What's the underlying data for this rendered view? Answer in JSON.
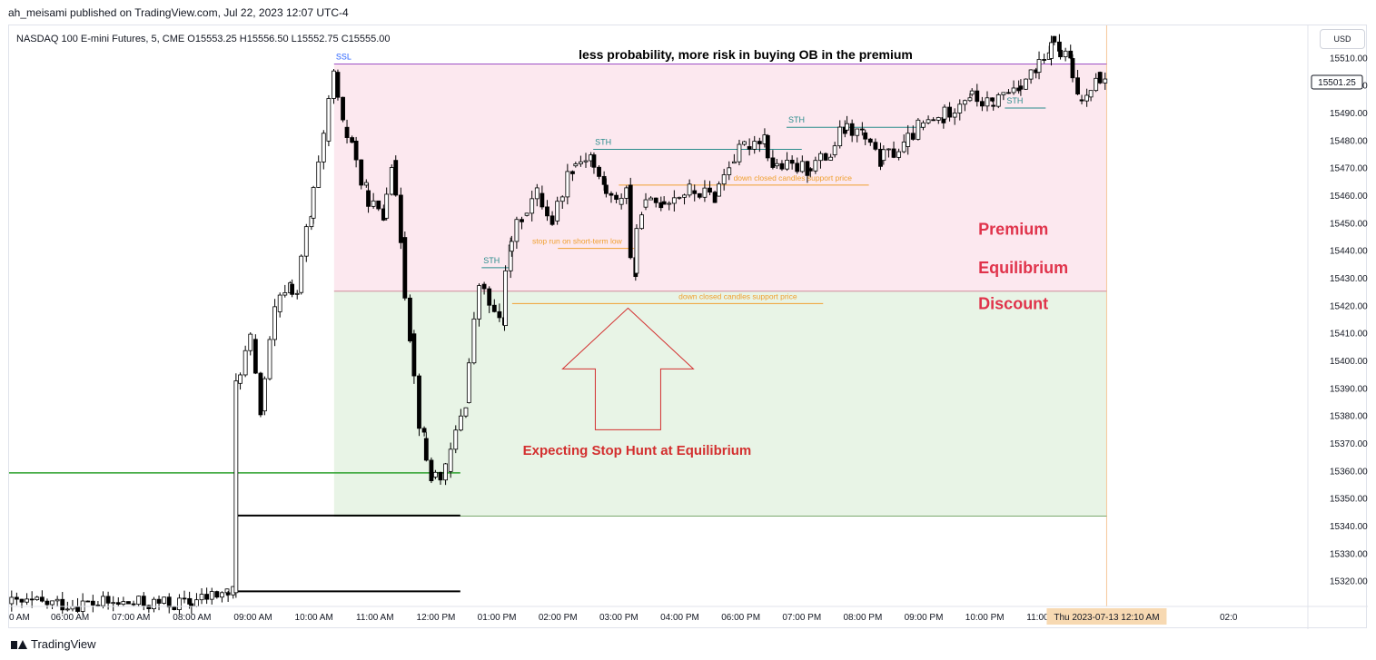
{
  "publisher_line": "ah_meisami published on TradingView.com, Jul 22, 2023 12:07 UTC-4",
  "footer_brand": "TradingView",
  "currency_button": "USD",
  "chart_data": {
    "type": "candlestick",
    "symbol_line": "NASDAQ 100 E-mini Futures, 5, CME  O15553.25  H15556.50  L15552.75  C15555.00",
    "title": "less probability, more risk in buying OB in the premium",
    "ylim": [
      15311,
      15522
    ],
    "y_ticks": [
      15320,
      15330,
      15340,
      15350,
      15360,
      15370,
      15380,
      15390,
      15400,
      15410,
      15420,
      15430,
      15440,
      15450,
      15460,
      15470,
      15480,
      15490,
      15500,
      15510
    ],
    "x_range_hours": [
      5.0,
      26.3
    ],
    "x_ticks": [
      {
        "h": 5,
        "label": "0 AM"
      },
      {
        "h": 6,
        "label": "06:00 AM"
      },
      {
        "h": 7,
        "label": "07:00 AM"
      },
      {
        "h": 8,
        "label": "08:00 AM"
      },
      {
        "h": 9,
        "label": "09:00 AM"
      },
      {
        "h": 10,
        "label": "10:00 AM"
      },
      {
        "h": 11,
        "label": "11:00 AM"
      },
      {
        "h": 12,
        "label": "12:00 PM"
      },
      {
        "h": 13,
        "label": "01:00 PM"
      },
      {
        "h": 14,
        "label": "02:00 PM"
      },
      {
        "h": 15,
        "label": "03:00 PM"
      },
      {
        "h": 16,
        "label": "04:00 PM"
      },
      {
        "h": 17,
        "label": "06:00 PM"
      },
      {
        "h": 18,
        "label": "07:00 PM"
      },
      {
        "h": 19,
        "label": "08:00 PM"
      },
      {
        "h": 20,
        "label": "09:00 PM"
      },
      {
        "h": 21,
        "label": "10:00 PM"
      },
      {
        "h": 22,
        "label": "11:00 PM"
      },
      {
        "h": 25,
        "label": "02:0"
      }
    ],
    "crosshair_time_label": "Thu 2023-07-13   12:10 AM",
    "crosshair_h": 23.0,
    "last_price_label": "15501.25",
    "last_price": 15501.25,
    "zones": [
      {
        "name": "premium-zone",
        "x0": 10.33,
        "x1": 23.0,
        "y0": 15425.5,
        "y1": 15508,
        "color": "#fce8ef"
      },
      {
        "name": "discount-zone",
        "x0": 10.33,
        "x1": 23.0,
        "y0": 15343.8,
        "y1": 15425.5,
        "color": "#e8f4e6"
      }
    ],
    "levels": [
      {
        "name": "ssl-line",
        "x0": 10.33,
        "x1": 23.0,
        "y": 15508,
        "color": "#9c4fc4",
        "width": 1,
        "label": "SSL",
        "label_color": "#2962ff",
        "label_x": 10.33
      },
      {
        "name": "equilibrium-line",
        "x0": 10.33,
        "x1": 23.0,
        "y": 15425.5,
        "color": "#d08a9c",
        "width": 1,
        "label": "",
        "label_color": "",
        "label_x": 0
      },
      {
        "name": "discount-bottom-line",
        "x0": 10.33,
        "x1": 23.0,
        "y": 15343.8,
        "color": "#7aa86e",
        "width": 1,
        "label": "",
        "label_color": "",
        "label_x": 0
      },
      {
        "name": "green-line",
        "x0": 5.0,
        "x1": 12.4,
        "y": 15359.5,
        "color": "#2ca02c",
        "width": 1.5,
        "label": "",
        "label_color": "",
        "label_x": 0
      },
      {
        "name": "black-line-upper",
        "x0": 8.69,
        "x1": 12.4,
        "y": 15344,
        "color": "#000000",
        "width": 2,
        "label": "",
        "label_color": "",
        "label_x": 0
      },
      {
        "name": "black-line-lower",
        "x0": 8.69,
        "x1": 12.4,
        "y": 15316.5,
        "color": "#000000",
        "width": 2,
        "label": "",
        "label_color": "",
        "label_x": 0
      },
      {
        "name": "sth-1-line",
        "x0": 12.75,
        "x1": 13.25,
        "y": 15434,
        "color": "#2a8c8c",
        "width": 1,
        "label": "STH",
        "label_color": "#2a8c8c",
        "label_x": 12.75
      },
      {
        "name": "sth-2-line",
        "x0": 14.58,
        "x1": 18.0,
        "y": 15477,
        "color": "#2a8c8c",
        "width": 1,
        "label": "STH",
        "label_color": "#2a8c8c",
        "label_x": 14.58
      },
      {
        "name": "sth-3-line",
        "x0": 17.75,
        "x1": 20.0,
        "y": 15485,
        "color": "#2a8c8c",
        "width": 1,
        "label": "STH",
        "label_color": "#2a8c8c",
        "label_x": 17.75
      },
      {
        "name": "sth-4-line",
        "x0": 21.33,
        "x1": 22.0,
        "y": 15492,
        "color": "#2a8c8c",
        "width": 1,
        "label": "STH",
        "label_color": "#2a8c8c",
        "label_x": 21.33
      },
      {
        "name": "stop-run-line",
        "x0": 14.0,
        "x1": 15.25,
        "y": 15441,
        "color": "#f0a030",
        "width": 1,
        "label": "stop run on short-term low",
        "label_color": "#f0a030",
        "label_x": 13.55
      },
      {
        "name": "support-line-upper",
        "x0": 15.0,
        "x1": 19.1,
        "y": 15464,
        "color": "#f0a030",
        "width": 1,
        "label": "down closed candles support price",
        "label_color": "#f0a030",
        "label_x": 16.85
      },
      {
        "name": "support-line-lower",
        "x0": 13.25,
        "x1": 18.35,
        "y": 15421,
        "color": "#f0a030",
        "width": 1,
        "label": "down closed candles support price",
        "label_color": "#f0a030",
        "label_x": 15.95
      }
    ],
    "zone_labels": [
      {
        "name": "premium-label",
        "text": "Premium",
        "h": 21.0,
        "y": 15446
      },
      {
        "name": "equilibrium-label",
        "text": "Equilibrium",
        "h": 21.0,
        "y": 15432
      },
      {
        "name": "discount-label",
        "text": "Discount",
        "h": 21.0,
        "y": 15419
      }
    ],
    "annotation": {
      "text": "Expecting Stop Hunt at Equilibrium",
      "h": 15.15,
      "y": 15368,
      "color": "#d32f2f"
    },
    "arrow": {
      "tip_h": 15.15,
      "tip_y": 15420,
      "color": "#d32f2f"
    },
    "candles_spec": [
      [
        5.0,
        7.95,
        15312,
        15312
      ],
      [
        7.95,
        8.55,
        15312,
        15316
      ],
      [
        8.55,
        8.68,
        15316,
        15316
      ],
      [
        8.68,
        8.75,
        15316,
        15392
      ],
      [
        8.75,
        9.0,
        15392,
        15408
      ],
      [
        9.0,
        9.15,
        15408,
        15382
      ],
      [
        9.15,
        9.4,
        15382,
        15418
      ],
      [
        9.4,
        9.6,
        15418,
        15428
      ],
      [
        9.6,
        9.75,
        15428,
        15425
      ],
      [
        9.75,
        9.95,
        15425,
        15452
      ],
      [
        9.95,
        10.2,
        15452,
        15480
      ],
      [
        10.2,
        10.35,
        15480,
        15505
      ],
      [
        10.35,
        10.5,
        15505,
        15485
      ],
      [
        10.5,
        10.65,
        15485,
        15480
      ],
      [
        10.65,
        10.85,
        15480,
        15462
      ],
      [
        10.85,
        11.15,
        15462,
        15452
      ],
      [
        11.15,
        11.3,
        15452,
        15473
      ],
      [
        11.3,
        11.45,
        15473,
        15445
      ],
      [
        11.45,
        11.6,
        15445,
        15410
      ],
      [
        11.6,
        11.8,
        15410,
        15372
      ],
      [
        11.8,
        11.95,
        15372,
        15358
      ],
      [
        11.95,
        12.2,
        15358,
        15360
      ],
      [
        12.2,
        12.5,
        15360,
        15385
      ],
      [
        12.5,
        12.75,
        15385,
        15428
      ],
      [
        12.75,
        13.1,
        15428,
        15413
      ],
      [
        13.1,
        13.2,
        15413,
        15440
      ],
      [
        13.2,
        13.45,
        15440,
        15453
      ],
      [
        13.45,
        13.7,
        15453,
        15461
      ],
      [
        13.7,
        13.95,
        15461,
        15451
      ],
      [
        13.95,
        14.25,
        15451,
        15471
      ],
      [
        14.25,
        14.55,
        15471,
        15475
      ],
      [
        14.55,
        14.75,
        15475,
        15464
      ],
      [
        14.75,
        15.0,
        15464,
        15457
      ],
      [
        15.0,
        15.15,
        15457,
        15464
      ],
      [
        15.15,
        15.25,
        15464,
        15432
      ],
      [
        15.25,
        15.4,
        15432,
        15456
      ],
      [
        15.4,
        15.7,
        15456,
        15458
      ],
      [
        15.7,
        16.2,
        15458,
        15462
      ],
      [
        16.2,
        16.6,
        15462,
        15460
      ],
      [
        16.6,
        16.85,
        15460,
        15472
      ],
      [
        16.85,
        17.1,
        15472,
        15478
      ],
      [
        17.1,
        17.4,
        15478,
        15482
      ],
      [
        17.4,
        17.55,
        15482,
        15471
      ],
      [
        17.55,
        18.1,
        15471,
        15470
      ],
      [
        18.1,
        18.5,
        15470,
        15475
      ],
      [
        18.5,
        18.7,
        15475,
        15484
      ],
      [
        18.7,
        19.0,
        15484,
        15483
      ],
      [
        19.0,
        19.3,
        15483,
        15473
      ],
      [
        19.3,
        19.7,
        15473,
        15478
      ],
      [
        19.7,
        19.95,
        15478,
        15485
      ],
      [
        19.95,
        20.3,
        15485,
        15488
      ],
      [
        20.3,
        20.75,
        15488,
        15497
      ],
      [
        20.75,
        21.1,
        15497,
        15493
      ],
      [
        21.1,
        21.55,
        15493,
        15500
      ],
      [
        21.55,
        21.85,
        15500,
        15505
      ],
      [
        21.85,
        22.05,
        15505,
        15510
      ],
      [
        22.05,
        22.1,
        15510,
        15518
      ],
      [
        22.1,
        22.2,
        15518,
        15513
      ],
      [
        22.2,
        22.4,
        15513,
        15510
      ],
      [
        22.4,
        22.55,
        15510,
        15495
      ],
      [
        22.55,
        22.7,
        15495,
        15496
      ],
      [
        22.7,
        22.85,
        15496,
        15505
      ],
      [
        22.85,
        23.0,
        15505,
        15501
      ]
    ]
  }
}
